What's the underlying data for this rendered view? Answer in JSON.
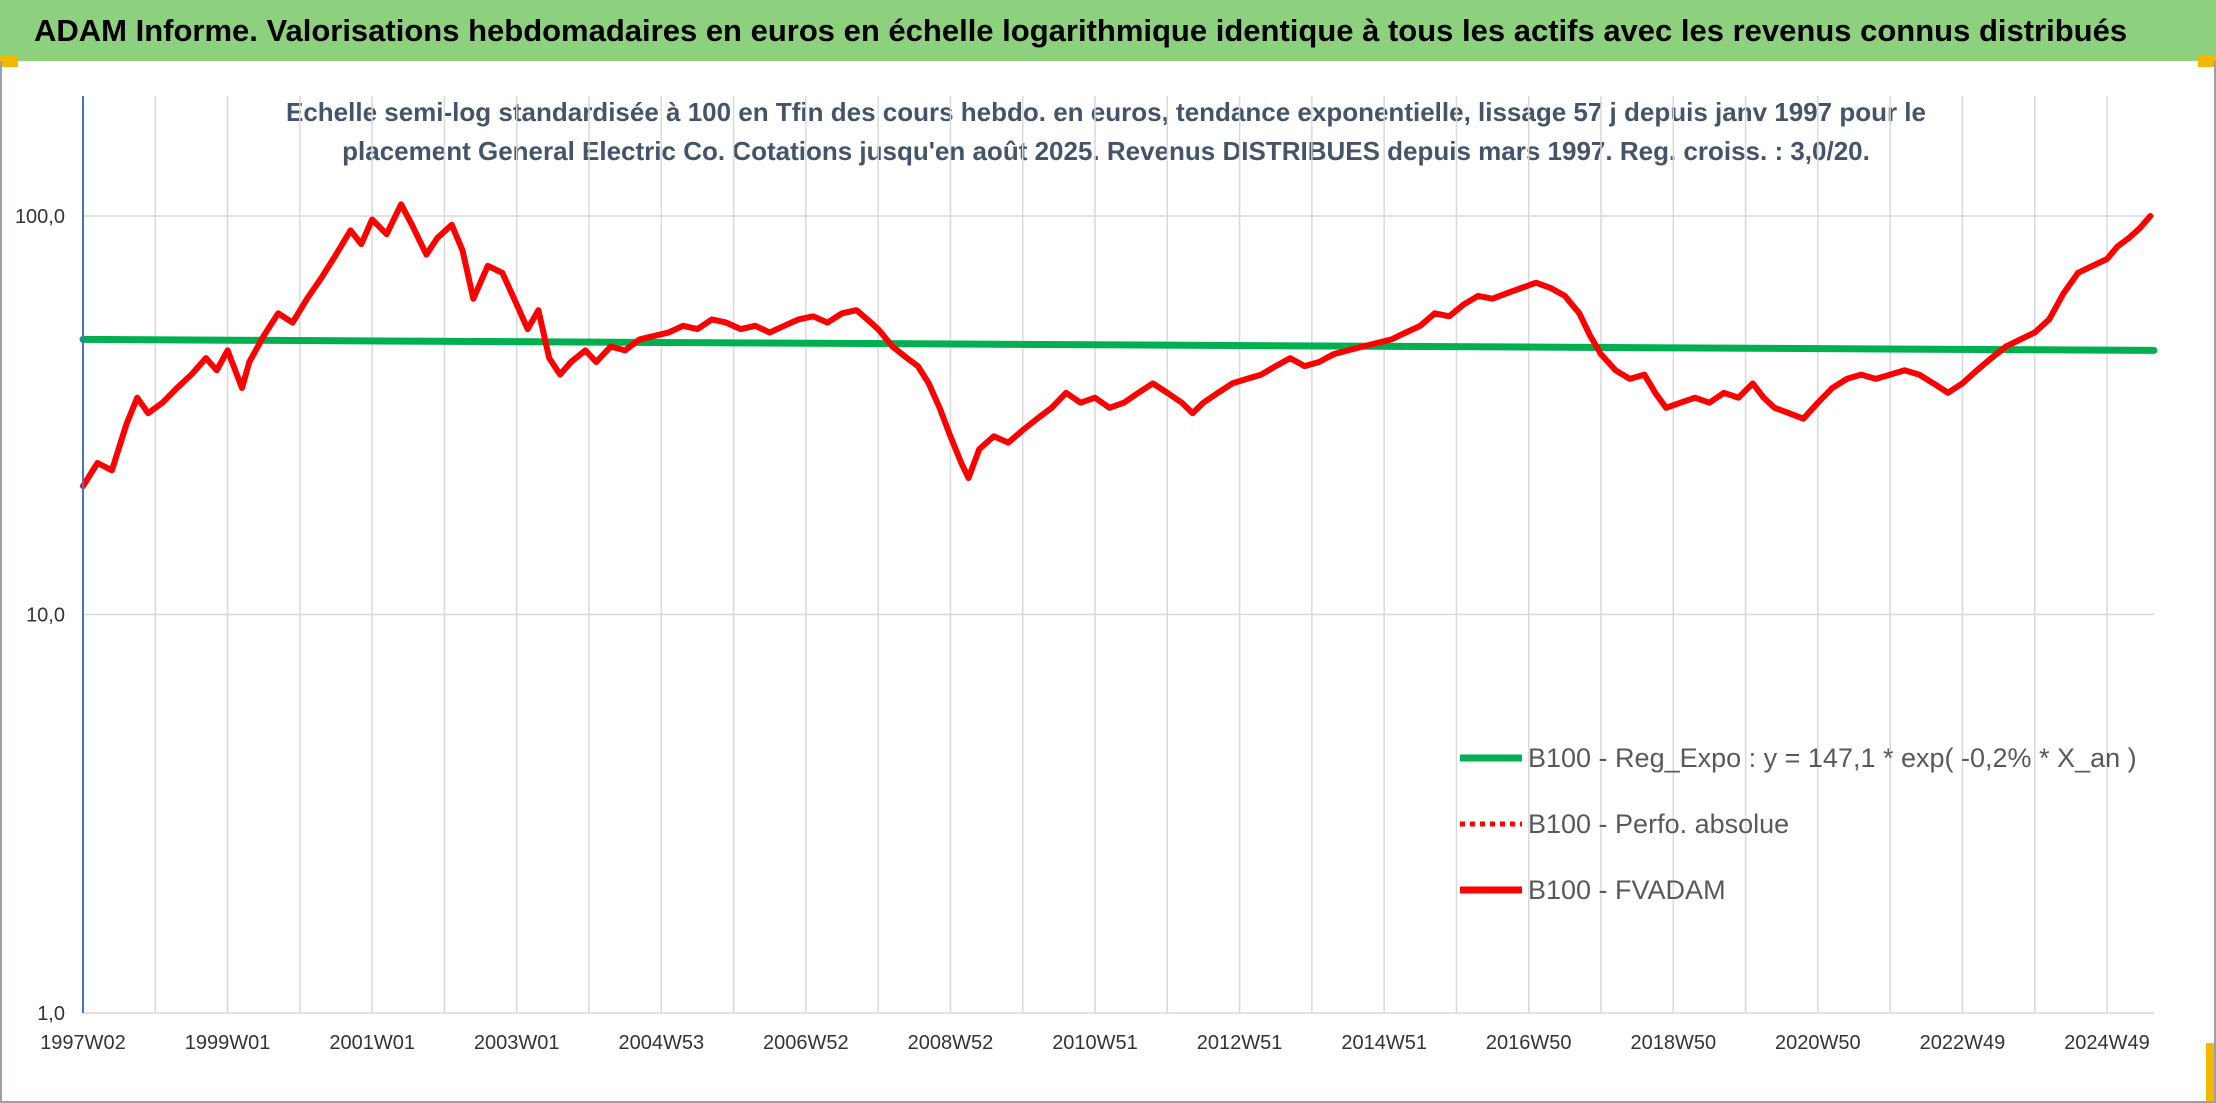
{
  "header": {
    "title": "ADAM Informe. Valorisations hebdomadaires en euros en échelle logarithmique identique à tous les actifs avec les revenus connus distribués"
  },
  "chart_data": {
    "type": "line",
    "title_lines": [
      "Echelle semi-log standardisée à 100 en Tfin des cours hebdo. en euros, tendance exponentielle, lissage 57 j depuis janv 1997 pour le",
      "placement General Electric Co. Cotations jusqu'en août 2025. Revenus DISTRIBUES depuis mars 1997. Reg. croiss. : 3,0/20."
    ],
    "y_scale": "log",
    "ylim": [
      1,
      200
    ],
    "y_ticks": [
      "1,0",
      "10,0",
      "100,0"
    ],
    "xlim": [
      1997.0,
      2025.65
    ],
    "x_tick_labels": [
      "1997W02",
      "1999W01",
      "2001W01",
      "2003W01",
      "2004W53",
      "2006W52",
      "2008W52",
      "2010W51",
      "2012W51",
      "2014W51",
      "2016W50",
      "2018W50",
      "2020W50",
      "2022W49",
      "2024W49"
    ],
    "x_tick_years": [
      1997.0,
      1999.0,
      2001.0,
      2003.0,
      2005.0,
      2007.0,
      2009.0,
      2011.0,
      2013.0,
      2015.0,
      2017.0,
      2019.0,
      2021.0,
      2023.0,
      2025.0
    ],
    "grid": true,
    "legend_position": "bottom-right",
    "series": [
      {
        "name": "B100 - Reg_Expo : y = 147,1 * exp( -0,2% *  X_an )",
        "color": "#00b050",
        "style": "solid",
        "points": [
          [
            1997.0,
            49.0
          ],
          [
            2025.65,
            46.0
          ]
        ]
      },
      {
        "name": "B100 - Perfo. absolue",
        "color": "#ff0000",
        "style": "dotted",
        "points": []
      },
      {
        "name": "B100 - FVADAM",
        "color": "#ff0000",
        "style": "solid",
        "points": [
          [
            1997.0,
            21
          ],
          [
            1997.2,
            24
          ],
          [
            1997.4,
            23
          ],
          [
            1997.6,
            30
          ],
          [
            1997.75,
            35
          ],
          [
            1997.9,
            32
          ],
          [
            1998.1,
            34
          ],
          [
            1998.3,
            37
          ],
          [
            1998.5,
            40
          ],
          [
            1998.7,
            44
          ],
          [
            1998.85,
            41
          ],
          [
            1999.0,
            46
          ],
          [
            1999.2,
            37
          ],
          [
            1999.3,
            43
          ],
          [
            1999.5,
            50
          ],
          [
            1999.7,
            57
          ],
          [
            1999.9,
            54
          ],
          [
            2000.1,
            62
          ],
          [
            2000.3,
            70
          ],
          [
            2000.5,
            80
          ],
          [
            2000.7,
            92
          ],
          [
            2000.85,
            85
          ],
          [
            2001.0,
            98
          ],
          [
            2001.2,
            90
          ],
          [
            2001.4,
            107
          ],
          [
            2001.55,
            95
          ],
          [
            2001.75,
            80
          ],
          [
            2001.9,
            88
          ],
          [
            2002.1,
            95
          ],
          [
            2002.25,
            82
          ],
          [
            2002.4,
            62
          ],
          [
            2002.6,
            75
          ],
          [
            2002.8,
            72
          ],
          [
            2003.0,
            60
          ],
          [
            2003.15,
            52
          ],
          [
            2003.3,
            58
          ],
          [
            2003.45,
            44
          ],
          [
            2003.6,
            40
          ],
          [
            2003.75,
            43
          ],
          [
            2003.95,
            46
          ],
          [
            2004.1,
            43
          ],
          [
            2004.3,
            47
          ],
          [
            2004.5,
            46
          ],
          [
            2004.7,
            49
          ],
          [
            2004.9,
            50
          ],
          [
            2005.1,
            51
          ],
          [
            2005.3,
            53
          ],
          [
            2005.5,
            52
          ],
          [
            2005.7,
            55
          ],
          [
            2005.9,
            54
          ],
          [
            2006.1,
            52
          ],
          [
            2006.3,
            53
          ],
          [
            2006.5,
            51
          ],
          [
            2006.7,
            53
          ],
          [
            2006.9,
            55
          ],
          [
            2007.1,
            56
          ],
          [
            2007.3,
            54
          ],
          [
            2007.5,
            57
          ],
          [
            2007.7,
            58
          ],
          [
            2007.85,
            55
          ],
          [
            2008.0,
            52
          ],
          [
            2008.2,
            47
          ],
          [
            2008.4,
            44
          ],
          [
            2008.55,
            42
          ],
          [
            2008.7,
            38
          ],
          [
            2008.85,
            33
          ],
          [
            2009.0,
            28
          ],
          [
            2009.15,
            24
          ],
          [
            2009.25,
            22
          ],
          [
            2009.4,
            26
          ],
          [
            2009.6,
            28
          ],
          [
            2009.8,
            27
          ],
          [
            2010.0,
            29
          ],
          [
            2010.2,
            31
          ],
          [
            2010.4,
            33
          ],
          [
            2010.6,
            36
          ],
          [
            2010.8,
            34
          ],
          [
            2011.0,
            35
          ],
          [
            2011.2,
            33
          ],
          [
            2011.4,
            34
          ],
          [
            2011.6,
            36
          ],
          [
            2011.8,
            38
          ],
          [
            2012.0,
            36
          ],
          [
            2012.2,
            34
          ],
          [
            2012.35,
            32
          ],
          [
            2012.5,
            34
          ],
          [
            2012.7,
            36
          ],
          [
            2012.9,
            38
          ],
          [
            2013.1,
            39
          ],
          [
            2013.3,
            40
          ],
          [
            2013.5,
            42
          ],
          [
            2013.7,
            44
          ],
          [
            2013.9,
            42
          ],
          [
            2014.1,
            43
          ],
          [
            2014.3,
            45
          ],
          [
            2014.5,
            46
          ],
          [
            2014.7,
            47
          ],
          [
            2014.9,
            48
          ],
          [
            2015.1,
            49
          ],
          [
            2015.3,
            51
          ],
          [
            2015.5,
            53
          ],
          [
            2015.7,
            57
          ],
          [
            2015.9,
            56
          ],
          [
            2016.1,
            60
          ],
          [
            2016.3,
            63
          ],
          [
            2016.5,
            62
          ],
          [
            2016.7,
            64
          ],
          [
            2016.9,
            66
          ],
          [
            2017.1,
            68
          ],
          [
            2017.3,
            66
          ],
          [
            2017.5,
            63
          ],
          [
            2017.7,
            57
          ],
          [
            2017.85,
            50
          ],
          [
            2018.0,
            45
          ],
          [
            2018.2,
            41
          ],
          [
            2018.4,
            39
          ],
          [
            2018.6,
            40
          ],
          [
            2018.75,
            36
          ],
          [
            2018.9,
            33
          ],
          [
            2019.1,
            34
          ],
          [
            2019.3,
            35
          ],
          [
            2019.5,
            34
          ],
          [
            2019.7,
            36
          ],
          [
            2019.9,
            35
          ],
          [
            2020.1,
            38
          ],
          [
            2020.25,
            35
          ],
          [
            2020.4,
            33
          ],
          [
            2020.6,
            32
          ],
          [
            2020.8,
            31
          ],
          [
            2021.0,
            34
          ],
          [
            2021.2,
            37
          ],
          [
            2021.4,
            39
          ],
          [
            2021.6,
            40
          ],
          [
            2021.8,
            39
          ],
          [
            2022.0,
            40
          ],
          [
            2022.2,
            41
          ],
          [
            2022.4,
            40
          ],
          [
            2022.6,
            38
          ],
          [
            2022.8,
            36
          ],
          [
            2023.0,
            38
          ],
          [
            2023.2,
            41
          ],
          [
            2023.4,
            44
          ],
          [
            2023.6,
            47
          ],
          [
            2023.8,
            49
          ],
          [
            2024.0,
            51
          ],
          [
            2024.2,
            55
          ],
          [
            2024.4,
            64
          ],
          [
            2024.6,
            72
          ],
          [
            2024.8,
            75
          ],
          [
            2025.0,
            78
          ],
          [
            2025.15,
            84
          ],
          [
            2025.3,
            88
          ],
          [
            2025.45,
            93
          ],
          [
            2025.6,
            100
          ]
        ]
      }
    ]
  }
}
